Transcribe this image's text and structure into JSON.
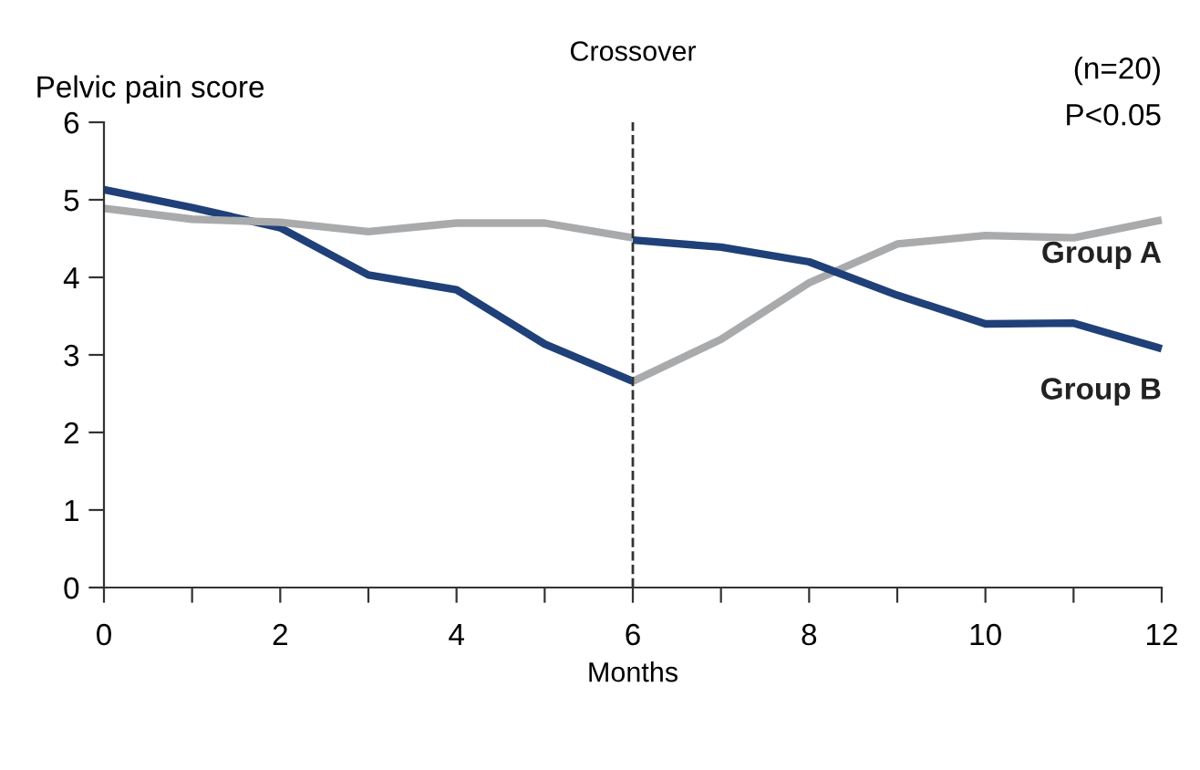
{
  "chart_data": {
    "type": "line",
    "xlabel": "Months",
    "ylabel": "Pelvic pain score",
    "xlim": [
      0,
      12
    ],
    "ylim": [
      0,
      6
    ],
    "xticks": [
      0,
      {
        "value": 1,
        "label": null
      },
      2,
      {
        "value": 3,
        "label": null
      },
      4,
      {
        "value": 5,
        "label": null
      },
      6,
      {
        "value": 7,
        "label": null
      },
      8,
      {
        "value": 9,
        "label": null
      },
      10,
      {
        "value": 11,
        "label": null
      },
      12
    ],
    "yticks": [
      0,
      1,
      2,
      3,
      4,
      5,
      6
    ],
    "series": [
      {
        "color": "#1f4078",
        "x": [
          0,
          1,
          2,
          3,
          4,
          5,
          6
        ],
        "values": [
          5.13,
          4.9,
          4.64,
          4.03,
          3.84,
          3.14,
          2.66
        ]
      },
      {
        "color": "#a9aaac",
        "x": [
          0,
          1,
          2,
          3,
          4,
          5,
          6
        ],
        "values": [
          4.89,
          4.75,
          4.71,
          4.59,
          4.7,
          4.7,
          4.51
        ]
      },
      {
        "name": "Group A",
        "color": "#a9aaac",
        "x": [
          6,
          7,
          8,
          9,
          10,
          11,
          12
        ],
        "values": [
          2.66,
          3.2,
          3.93,
          4.43,
          4.54,
          4.51,
          4.74
        ]
      },
      {
        "name": "Group B",
        "color": "#1f4078",
        "x": [
          6,
          7,
          8,
          9,
          10,
          11,
          12
        ],
        "values": [
          4.48,
          4.39,
          4.2,
          3.77,
          3.4,
          3.41,
          3.08
        ]
      }
    ],
    "ref_lines": [
      {
        "axis": "x",
        "value": 6,
        "label": "Crossover",
        "color": "#333333",
        "line_style": "dashed"
      }
    ],
    "annotations": [
      "(n=20)",
      "P<0.05"
    ],
    "grid": false,
    "legend": false,
    "marker": "none",
    "line_style": "solid"
  }
}
